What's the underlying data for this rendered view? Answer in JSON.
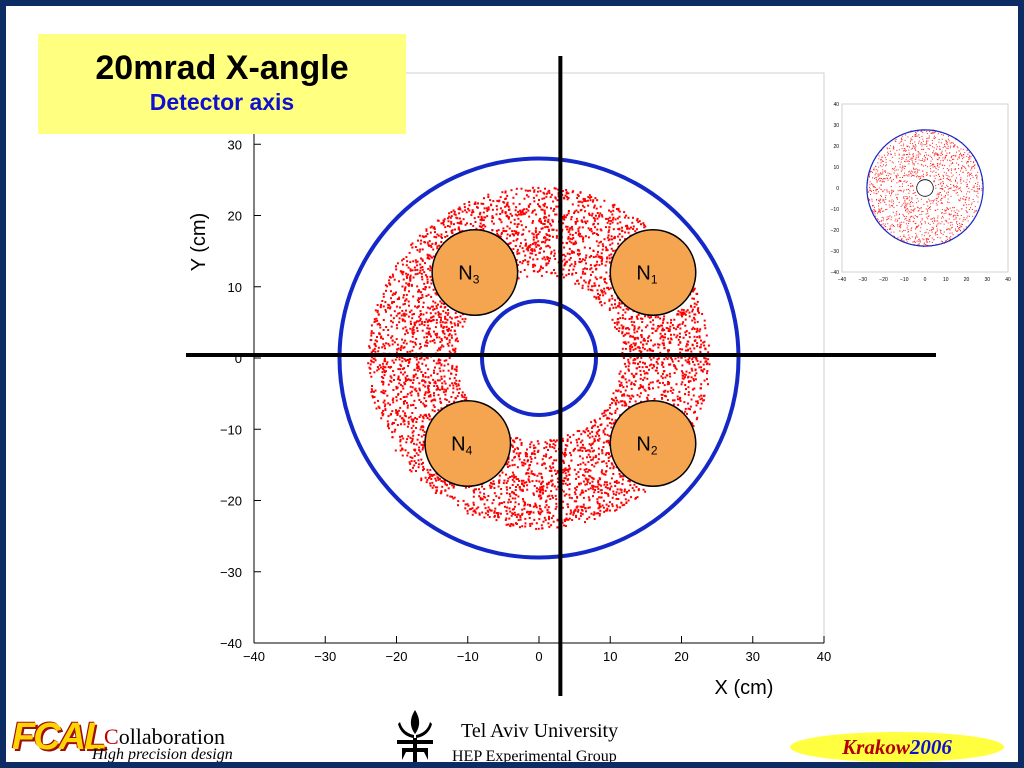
{
  "title": {
    "main": "20mrad X-angle",
    "sub": "Detector axis"
  },
  "chart_data": {
    "type": "scatter",
    "xlabel": "X (cm)",
    "ylabel": "Y (cm)",
    "xlim": [
      -40,
      40
    ],
    "ylim": [
      -40,
      40
    ],
    "x_ticks": [
      "−40",
      "−30",
      "−20",
      "−10",
      "0",
      "10",
      "20",
      "30",
      "40"
    ],
    "y_ticks": [
      "30",
      "20",
      "10",
      "0",
      "−10",
      "−20",
      "−30",
      "−40"
    ],
    "x_tick_values": [
      -40,
      -30,
      -20,
      -10,
      0,
      10,
      20,
      30,
      40
    ],
    "y_tick_values": [
      30,
      20,
      10,
      0,
      -10,
      -20,
      -30,
      -40
    ],
    "ring_points": {
      "center": [
        0,
        0
      ],
      "inner_radius": 11.5,
      "outer_radius": 24,
      "color": "#ff0000"
    },
    "detector_circles": [
      {
        "name": "outer",
        "center": [
          0,
          0
        ],
        "radius": 28,
        "color": "#1428c8"
      },
      {
        "name": "inner",
        "center": [
          0,
          0
        ],
        "radius": 8,
        "color": "#1428c8"
      }
    ],
    "crosshair": {
      "x": 3,
      "y": 0
    },
    "n_circles": [
      {
        "label": "N",
        "sub": "1",
        "center": [
          16,
          12
        ],
        "radius": 6
      },
      {
        "label": "N",
        "sub": "2",
        "center": [
          16,
          -12
        ],
        "radius": 6
      },
      {
        "label": "N",
        "sub": "3",
        "center": [
          -9,
          12
        ],
        "radius": 6
      },
      {
        "label": "N",
        "sub": "4",
        "center": [
          -10,
          -12
        ],
        "radius": 6
      }
    ],
    "n_circle_fill": "#f5a550"
  },
  "inset": {
    "x_ticks": [
      "−40",
      "−30",
      "−20",
      "−10",
      "0",
      "10",
      "20",
      "30",
      "40"
    ],
    "y_ticks": [
      "40",
      "30",
      "20",
      "10",
      "0",
      "−10",
      "−20",
      "−30",
      "−40"
    ],
    "x_tick_values": [
      -40,
      -30,
      -20,
      -10,
      0,
      10,
      20,
      30,
      40
    ],
    "y_tick_values": [
      40,
      30,
      20,
      10,
      0,
      -10,
      -20,
      -30,
      -40
    ],
    "ring_points": {
      "center": [
        0,
        0
      ],
      "inner_radius": 5,
      "outer_radius": 28
    },
    "outer_circle": {
      "center": [
        0,
        0
      ],
      "radius": 28
    },
    "inner_circle": {
      "center": [
        0,
        0
      ],
      "radius": 4
    }
  },
  "footer": {
    "fcal_logo": "FCAL",
    "collab_initial": "C",
    "collab_rest": "ollaboration",
    "tagline": "High precision design",
    "university": "Tel Aviv University",
    "group": "HEP Experimental Group",
    "krakow_city": "Krakow",
    "krakow_year": "2006"
  }
}
